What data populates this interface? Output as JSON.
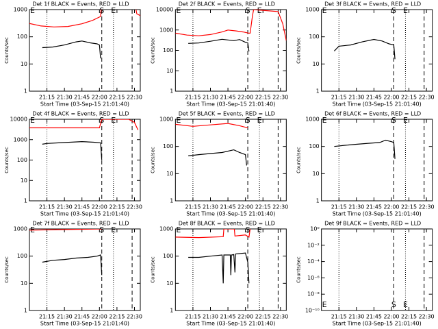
{
  "chart_data": [
    {
      "type": "line",
      "title": "Det 1f BLACK = Events, RED = LLD",
      "xlabel": "Start Time (03-Sep-15 21:01:40)",
      "ylabel": "Counts/sec",
      "xlim": [
        0,
        95
      ],
      "xticks": [
        {
          "value": 15,
          "label": "21:15"
        },
        {
          "value": 30,
          "label": "21:30"
        },
        {
          "value": 45,
          "label": "21:45"
        },
        {
          "value": 60,
          "label": "22:00"
        },
        {
          "value": 75,
          "label": "22:15"
        },
        {
          "value": 90,
          "label": "22:30"
        }
      ],
      "ylog": true,
      "ylim": [
        1,
        1000
      ],
      "yticks": [
        1,
        10,
        100,
        1000
      ],
      "vlines": [
        {
          "x": 15,
          "style": "dotted"
        },
        {
          "x": 72,
          "style": "dotted"
        },
        {
          "x": 62,
          "style": "dashed"
        },
        {
          "x": 88,
          "style": "dashed"
        }
      ],
      "annotations": [
        {
          "text": "E",
          "x": 0,
          "pos": "top"
        },
        {
          "text": "S",
          "x": 62,
          "pos": "top"
        },
        {
          "text": "E",
          "x": 72,
          "pos": "top"
        }
      ],
      "series": [
        {
          "color": "#000000",
          "x": [
            11,
            20,
            30,
            40,
            45,
            52,
            58,
            60,
            61
          ],
          "values": [
            40,
            42,
            50,
            65,
            70,
            60,
            55,
            50,
            16
          ]
        },
        {
          "color": "#ff0000",
          "x": [
            0,
            10,
            21,
            33,
            45,
            54,
            61,
            62,
            75,
            90,
            92,
            95
          ],
          "values": [
            310,
            250,
            230,
            240,
            300,
            400,
            560,
            2000,
            null,
            2000,
            700,
            600
          ]
        }
      ]
    },
    {
      "type": "line",
      "title": "Det 2f BLACK = Events, RED = LLD",
      "xlabel": "Start Time (03-Sep-15 21:01:40)",
      "ylabel": "Counts/sec",
      "xlim": [
        0,
        95
      ],
      "xticks": [
        {
          "value": 15,
          "label": "21:15"
        },
        {
          "value": 30,
          "label": "21:30"
        },
        {
          "value": 45,
          "label": "21:45"
        },
        {
          "value": 60,
          "label": "22:00"
        },
        {
          "value": 75,
          "label": "22:15"
        },
        {
          "value": 90,
          "label": "22:30"
        }
      ],
      "ylog": true,
      "ylim": [
        1,
        10000
      ],
      "yticks": [
        1,
        10,
        100,
        1000,
        10000
      ],
      "vlines": [
        {
          "x": 15,
          "style": "dotted"
        },
        {
          "x": 72,
          "style": "dotted"
        },
        {
          "x": 62,
          "style": "dashed"
        },
        {
          "x": 88,
          "style": "dashed"
        }
      ],
      "annotations": [
        {
          "text": "E",
          "x": 0,
          "pos": "top"
        },
        {
          "text": "S",
          "x": 62,
          "pos": "top"
        },
        {
          "text": "E",
          "x": 72,
          "pos": "top"
        }
      ],
      "series": [
        {
          "color": "#000000",
          "x": [
            11,
            20,
            30,
            40,
            50,
            55,
            60,
            62,
            63
          ],
          "values": [
            220,
            230,
            280,
            350,
            300,
            340,
            250,
            230,
            90
          ]
        },
        {
          "color": "#ff0000",
          "x": [
            0,
            10,
            20,
            30,
            40,
            45,
            52,
            58,
            63,
            64,
            66,
            67,
            88,
            92,
            95
          ],
          "values": [
            700,
            560,
            520,
            600,
            800,
            1000,
            900,
            800,
            700,
            700,
            5000,
            10000,
            8000,
            2000,
            300
          ]
        }
      ]
    },
    {
      "type": "line",
      "title": "Det 3f BLACK = Events, RED = LLD",
      "xlabel": "Start Time (03-Sep-15 21:01:40)",
      "ylabel": "Counts/sec",
      "xlim": [
        0,
        95
      ],
      "xticks": [
        {
          "value": 15,
          "label": "21:15"
        },
        {
          "value": 30,
          "label": "21:30"
        },
        {
          "value": 45,
          "label": "21:45"
        },
        {
          "value": 60,
          "label": "22:00"
        },
        {
          "value": 75,
          "label": "22:15"
        },
        {
          "value": 90,
          "label": "22:30"
        }
      ],
      "ylog": true,
      "ylim": [
        1,
        1000
      ],
      "yticks": [
        1,
        10,
        100,
        1000
      ],
      "vlines": [
        {
          "x": 15,
          "style": "dotted"
        },
        {
          "x": 72,
          "style": "dotted"
        },
        {
          "x": 62,
          "style": "dashed"
        },
        {
          "x": 88,
          "style": "dashed"
        }
      ],
      "annotations": [
        {
          "text": "E",
          "x": 0,
          "pos": "top"
        },
        {
          "text": "S",
          "x": 62,
          "pos": "top"
        },
        {
          "text": "E",
          "x": 72,
          "pos": "top"
        }
      ],
      "series": [
        {
          "color": "#000000",
          "x": [
            11,
            15,
            25,
            35,
            45,
            52,
            58,
            62,
            63
          ],
          "values": [
            30,
            45,
            50,
            65,
            80,
            70,
            55,
            50,
            15
          ]
        }
      ]
    },
    {
      "type": "line",
      "title": "Det 4f BLACK = Events, RED = LLD",
      "xlabel": "Start Time (03-Sep-15 21:01:40)",
      "ylabel": "Counts/sec",
      "xlim": [
        0,
        95
      ],
      "xticks": [
        {
          "value": 15,
          "label": "21:15"
        },
        {
          "value": 30,
          "label": "21:30"
        },
        {
          "value": 45,
          "label": "21:45"
        },
        {
          "value": 60,
          "label": "22:00"
        },
        {
          "value": 75,
          "label": "22:15"
        },
        {
          "value": 90,
          "label": "22:30"
        }
      ],
      "ylog": true,
      "ylim": [
        1,
        10000
      ],
      "yticks": [
        1,
        10,
        100,
        1000,
        10000
      ],
      "vlines": [
        {
          "x": 15,
          "style": "dotted"
        },
        {
          "x": 72,
          "style": "dotted"
        },
        {
          "x": 62,
          "style": "dashed"
        },
        {
          "x": 88,
          "style": "dashed"
        }
      ],
      "annotations": [
        {
          "text": "E",
          "x": 0,
          "pos": "top"
        },
        {
          "text": "S",
          "x": 62,
          "pos": "top"
        },
        {
          "text": "E",
          "x": 72,
          "pos": "top"
        }
      ],
      "series": [
        {
          "color": "#000000",
          "x": [
            11,
            15,
            25,
            35,
            45,
            55,
            61,
            62
          ],
          "values": [
            600,
            650,
            700,
            750,
            800,
            750,
            700,
            100
          ]
        },
        {
          "color": "#ff0000",
          "x": [
            0,
            60,
            62,
            85,
            90,
            93
          ],
          "values": [
            3800,
            3800,
            10000,
            10000,
            7000,
            3000
          ]
        }
      ]
    },
    {
      "type": "line",
      "title": "Det 5f BLACK = Events, RED = LLD",
      "xlabel": "Start Time (03-Sep-15 21:01:40)",
      "ylabel": "Counts/sec",
      "xlim": [
        0,
        95
      ],
      "xticks": [
        {
          "value": 15,
          "label": "21:15"
        },
        {
          "value": 30,
          "label": "21:30"
        },
        {
          "value": 45,
          "label": "21:45"
        },
        {
          "value": 60,
          "label": "22:00"
        },
        {
          "value": 75,
          "label": "22:15"
        },
        {
          "value": 90,
          "label": "22:30"
        }
      ],
      "ylog": true,
      "ylim": [
        1,
        1000
      ],
      "yticks": [
        1,
        10,
        100,
        1000
      ],
      "vlines": [
        {
          "x": 15,
          "style": "dotted"
        },
        {
          "x": 72,
          "style": "dotted"
        },
        {
          "x": 62,
          "style": "dashed"
        },
        {
          "x": 88,
          "style": "dashed"
        }
      ],
      "annotations": [
        {
          "text": "E",
          "x": 0,
          "pos": "top"
        },
        {
          "text": "S",
          "x": 62,
          "pos": "top"
        },
        {
          "text": "E",
          "x": 72,
          "pos": "top"
        }
      ],
      "series": [
        {
          "color": "#000000",
          "x": [
            11,
            20,
            30,
            40,
            50,
            55,
            60,
            61
          ],
          "values": [
            45,
            50,
            55,
            60,
            75,
            60,
            50,
            20
          ]
        },
        {
          "color": "#ff0000",
          "x": [
            0,
            15,
            30,
            45,
            55,
            62
          ],
          "values": [
            650,
            550,
            620,
            700,
            580,
            480
          ]
        }
      ]
    },
    {
      "type": "line",
      "title": "Det 6f BLACK = Events, RED = LLD",
      "xlabel": "Start Time (03-Sep-15 21:01:40)",
      "ylabel": "Counts/sec",
      "xlim": [
        0,
        95
      ],
      "xticks": [
        {
          "value": 15,
          "label": "21:15"
        },
        {
          "value": 30,
          "label": "21:30"
        },
        {
          "value": 45,
          "label": "21:45"
        },
        {
          "value": 60,
          "label": "22:00"
        },
        {
          "value": 75,
          "label": "22:15"
        },
        {
          "value": 90,
          "label": "22:30"
        }
      ],
      "ylog": true,
      "ylim": [
        1,
        1000
      ],
      "yticks": [
        1,
        10,
        100,
        1000
      ],
      "vlines": [
        {
          "x": 15,
          "style": "dotted"
        },
        {
          "x": 72,
          "style": "dotted"
        },
        {
          "x": 62,
          "style": "dashed"
        },
        {
          "x": 88,
          "style": "dashed"
        }
      ],
      "annotations": [
        {
          "text": "E",
          "x": 0,
          "pos": "top"
        },
        {
          "text": "S",
          "x": 62,
          "pos": "top"
        },
        {
          "text": "E",
          "x": 72,
          "pos": "top"
        }
      ],
      "series": [
        {
          "color": "#000000",
          "x": [
            11,
            20,
            30,
            40,
            50,
            55,
            60,
            62,
            63
          ],
          "values": [
            100,
            110,
            120,
            130,
            140,
            170,
            150,
            140,
            35
          ]
        }
      ]
    },
    {
      "type": "line",
      "title": "Det 7f BLACK = Events, RED = LLD",
      "xlabel": "Start Time (03-Sep-15 21:01:40)",
      "ylabel": "Counts/sec",
      "xlim": [
        0,
        95
      ],
      "xticks": [
        {
          "value": 15,
          "label": "21:15"
        },
        {
          "value": 30,
          "label": "21:30"
        },
        {
          "value": 45,
          "label": "21:45"
        },
        {
          "value": 60,
          "label": "22:00"
        },
        {
          "value": 75,
          "label": "22:15"
        },
        {
          "value": 90,
          "label": "22:30"
        }
      ],
      "ylog": true,
      "ylim": [
        1,
        1000
      ],
      "yticks": [
        1,
        10,
        100,
        1000
      ],
      "vlines": [
        {
          "x": 15,
          "style": "dotted"
        },
        {
          "x": 72,
          "style": "dotted"
        },
        {
          "x": 62,
          "style": "dashed"
        },
        {
          "x": 88,
          "style": "dashed"
        }
      ],
      "annotations": [
        {
          "text": "E",
          "x": 0,
          "pos": "top"
        },
        {
          "text": "S",
          "x": 62,
          "pos": "top"
        },
        {
          "text": "E",
          "x": 72,
          "pos": "top"
        }
      ],
      "series": [
        {
          "color": "#000000",
          "x": [
            11,
            20,
            30,
            40,
            50,
            58,
            61,
            62
          ],
          "values": [
            60,
            70,
            75,
            85,
            90,
            100,
            110,
            20
          ]
        },
        {
          "color": "#ff0000",
          "x": [
            0,
            30,
            62
          ],
          "values": [
            900,
            950,
            1000
          ]
        }
      ]
    },
    {
      "type": "line",
      "title": "Det 8f BLACK = Events, RED = LLD",
      "xlabel": "Start Time (03-Sep-15 21:01:40)",
      "ylabel": "Counts/sec",
      "xlim": [
        0,
        95
      ],
      "xticks": [
        {
          "value": 15,
          "label": "21:15"
        },
        {
          "value": 30,
          "label": "21:30"
        },
        {
          "value": 45,
          "label": "21:45"
        },
        {
          "value": 60,
          "label": "22:00"
        },
        {
          "value": 75,
          "label": "22:15"
        },
        {
          "value": 90,
          "label": "22:30"
        }
      ],
      "ylog": true,
      "ylim": [
        1,
        1000
      ],
      "yticks": [
        1,
        10,
        100,
        1000
      ],
      "vlines": [
        {
          "x": 15,
          "style": "dotted"
        },
        {
          "x": 72,
          "style": "dotted"
        },
        {
          "x": 62,
          "style": "dashed"
        },
        {
          "x": 88,
          "style": "dashed"
        }
      ],
      "annotations": [
        {
          "text": "E",
          "x": 0,
          "pos": "top"
        },
        {
          "text": "S",
          "x": 62,
          "pos": "top"
        },
        {
          "text": "E",
          "x": 72,
          "pos": "top"
        }
      ],
      "series": [
        {
          "color": "#000000",
          "x": [
            11,
            20,
            30,
            40,
            41,
            41.5,
            47,
            47.5,
            48,
            50,
            51,
            51.5,
            60,
            62,
            63
          ],
          "values": [
            90,
            90,
            100,
            110,
            10,
            110,
            110,
            20,
            110,
            115,
            25,
            120,
            130,
            60,
            10
          ]
        },
        {
          "color": "#ff0000",
          "x": [
            0,
            20,
            41,
            41.5,
            50.5,
            51,
            60,
            63,
            64
          ],
          "values": [
            500,
            480,
            520,
            1000,
            1000,
            550,
            600,
            500,
            1000
          ]
        }
      ]
    },
    {
      "type": "line",
      "title": "Det 9f BLACK = Events, RED = LLD",
      "xlabel": "Start Time (03-Sep-15 21:01:40)",
      "ylabel": "Counts/sec",
      "xlim": [
        0,
        95
      ],
      "xticks": [
        {
          "value": 15,
          "label": "21:15"
        },
        {
          "value": 30,
          "label": "21:30"
        },
        {
          "value": 45,
          "label": "21:45"
        },
        {
          "value": 60,
          "label": "22:00"
        },
        {
          "value": 75,
          "label": "22:15"
        },
        {
          "value": 90,
          "label": "22:30"
        }
      ],
      "ylog": true,
      "ylim": [
        1e-10,
        1
      ],
      "yticks": [
        {
          "value": 1e-10,
          "label": "10⁻¹⁰"
        },
        {
          "value": 1e-08,
          "label": "10⁻⁸"
        },
        {
          "value": 1e-06,
          "label": "10⁻⁶"
        },
        {
          "value": 0.0001,
          "label": "10⁻⁴"
        },
        {
          "value": 0.01,
          "label": "10⁻²"
        },
        {
          "value": 1,
          "label": "10⁰"
        }
      ],
      "vlines": [
        {
          "x": 15,
          "style": "dotted"
        },
        {
          "x": 72,
          "style": "dotted"
        },
        {
          "x": 62,
          "style": "dashed"
        },
        {
          "x": 88,
          "style": "dashed"
        }
      ],
      "annotations": [
        {
          "text": "E",
          "x": 0,
          "pos": "bottom"
        },
        {
          "text": "S",
          "x": 62,
          "pos": "bottom"
        },
        {
          "text": "E",
          "x": 72,
          "pos": "bottom"
        }
      ],
      "series": []
    }
  ]
}
